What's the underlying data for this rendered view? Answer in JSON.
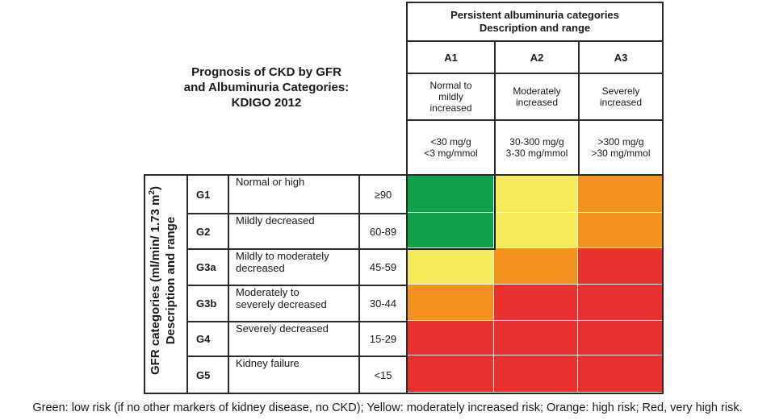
{
  "title": {
    "line1": "Prognosis of CKD by GFR",
    "line2": "and Albuminuria Categories:",
    "line3": "KDIGO 2012"
  },
  "albuminuria": {
    "header_line1": "Persistent albuminuria categories",
    "header_line2": "Description and range",
    "categories": [
      {
        "code": "A1",
        "desc_lines": [
          "Normal to",
          "mildly",
          "increased"
        ],
        "range_lines": [
          "<30 mg/g",
          "<3 mg/mmol"
        ]
      },
      {
        "code": "A2",
        "desc_lines": [
          "Moderately",
          "increased"
        ],
        "range_lines": [
          "30-300 mg/g",
          "3-30 mg/mmol"
        ]
      },
      {
        "code": "A3",
        "desc_lines": [
          "Severely",
          "increased"
        ],
        "range_lines": [
          ">300 mg/g",
          ">30 mg/mmol"
        ]
      }
    ]
  },
  "gfr": {
    "side_label_line1": "GFR categories (ml/min/ 1.73 m",
    "side_label_sup": "2",
    "side_label_close": ")",
    "side_label_line2": "Description and range",
    "rows": [
      {
        "code": "G1",
        "desc_lines": [
          "Normal or high"
        ],
        "range": "≥90",
        "risk": [
          "green",
          "yellow",
          "orange"
        ]
      },
      {
        "code": "G2",
        "desc_lines": [
          "Mildly decreased"
        ],
        "range": "60-89",
        "risk": [
          "green",
          "yellow",
          "orange"
        ]
      },
      {
        "code": "G3a",
        "desc_lines": [
          "Mildly to moderately",
          "decreased"
        ],
        "range": "45-59",
        "risk": [
          "yellow",
          "orange",
          "red"
        ]
      },
      {
        "code": "G3b",
        "desc_lines": [
          "Moderately to",
          "severely decreased"
        ],
        "range": "30-44",
        "risk": [
          "orange",
          "red",
          "red"
        ]
      },
      {
        "code": "G4",
        "desc_lines": [
          "Severely decreased"
        ],
        "range": "15-29",
        "risk": [
          "red",
          "red",
          "red"
        ]
      },
      {
        "code": "G5",
        "desc_lines": [
          "Kidney failure"
        ],
        "range": "<15",
        "risk": [
          "red",
          "red",
          "red"
        ]
      }
    ]
  },
  "risk_colors": {
    "green": "#0ea14a",
    "yellow": "#f5ea5a",
    "orange": "#f4921f",
    "red": "#e8312f"
  },
  "caption": "Green: low risk (if no other markers of kidney disease, no CKD); Yellow: moderately increased risk; Orange: high risk; Red, very high risk."
}
